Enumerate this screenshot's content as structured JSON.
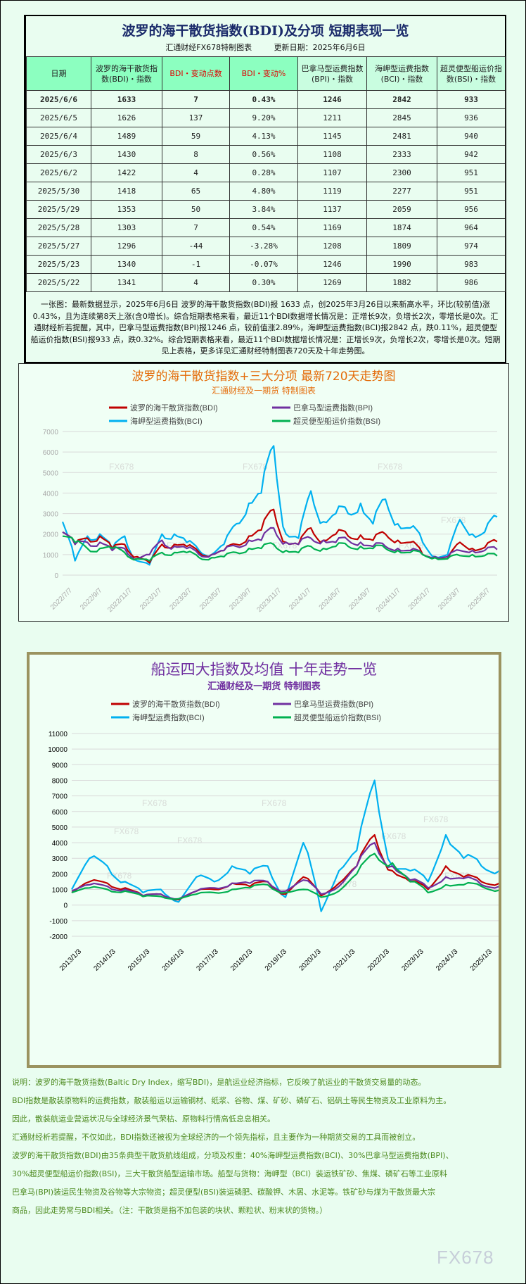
{
  "header": {
    "title": "波罗的海干散货指数(BDI)及分项 短期表现一览",
    "source": "汇通财经FX678特制图表",
    "update": "更新日期：2025年6月6日"
  },
  "table": {
    "columns": [
      "日期",
      "波罗的海干散货指数(BDI)・指数",
      "BDI・变动点数",
      "BDI・变动%",
      "巴拿马型运费指数(BPI)・指数",
      "海岬型运费指数(BCI)・指数",
      "超灵便型船运价指数(BSI)・指数"
    ],
    "rows": [
      [
        "2025/6/6",
        "1633",
        "7",
        "0.43%",
        "1246",
        "2842",
        "933"
      ],
      [
        "2025/6/5",
        "1626",
        "137",
        "9.20%",
        "1211",
        "2845",
        "936"
      ],
      [
        "2025/6/4",
        "1489",
        "59",
        "4.13%",
        "1145",
        "2481",
        "940"
      ],
      [
        "2025/6/3",
        "1430",
        "8",
        "0.56%",
        "1108",
        "2333",
        "942"
      ],
      [
        "2025/6/2",
        "1422",
        "4",
        "0.28%",
        "1107",
        "2300",
        "951"
      ],
      [
        "2025/5/30",
        "1418",
        "65",
        "4.80%",
        "1119",
        "2277",
        "951"
      ],
      [
        "2025/5/29",
        "1353",
        "50",
        "3.84%",
        "1137",
        "2059",
        "956"
      ],
      [
        "2025/5/28",
        "1303",
        "7",
        "0.54%",
        "1169",
        "1874",
        "964"
      ],
      [
        "2025/5/27",
        "1296",
        "-44",
        "-3.28%",
        "1208",
        "1809",
        "974"
      ],
      [
        "2025/5/23",
        "1340",
        "-1",
        "-0.07%",
        "1246",
        "1990",
        "983"
      ],
      [
        "2025/5/22",
        "1341",
        "4",
        "0.30%",
        "1269",
        "1882",
        "986"
      ]
    ],
    "summary": "一张图：最新数据显示，2025年6月6日 波罗的海干散货指数(BDI)报 1633 点，创2025年3月26日以来新高水平，环比(较前值)涨0.43%，且为连续第8天上涨(含0增长)。综合短期表格来看，最近11个BDI数据增长情况是：正增长9次，负增长2次，零增长是0次。汇通财经析若提醒，其中，巴拿马型运费指数(BPI)报1246 点，较前值涨2.89%，海岬型运费指数(BCI)报2842 点，跌0.11%，超灵便型船运价指数(BSI)报933 点，跌0.32%。综合短期表格来看，最近11个BDI数据增长情况是：正增长9次，负增长2次，零增长是0次。短期见上表格，更多详见汇通财经特制图表720天及十年走势图。"
  },
  "colors": {
    "BDI": "#c00000",
    "BPI": "#7030a0",
    "BCI": "#00b0f0",
    "BSI": "#00b050",
    "chart1_title": "#e46c0a",
    "chart2_title": "#7030a0"
  },
  "chart_data": [
    {
      "type": "line",
      "title": "波罗的海干散货指数+三大分项  最新720天走势图",
      "subtitle": "汇通财经及一期货  特制图表",
      "ylim": [
        0,
        7000
      ],
      "yticks": [
        "0",
        "1000",
        "2000",
        "3000",
        "4000",
        "5000",
        "6000",
        "7000"
      ],
      "xticks": [
        "2022/7/7",
        "2022/9/7",
        "2022/11/7",
        "2023/1/7",
        "2023/3/7",
        "2023/5/7",
        "2023/9/7",
        "2023/11/7",
        "2024/1/7",
        "2024/5/7",
        "2024/9/7",
        "2024/11/7",
        "2025/1/7",
        "2025/3/7",
        "2025/5/7"
      ],
      "grid": true,
      "legend": "top",
      "watermark": "FX678",
      "series": [
        {
          "name": "波罗的海干散货指数(BDI)",
          "key": "BDI",
          "values": [
            2100,
            1500,
            1800,
            1900,
            1300,
            1500,
            900,
            600,
            1500,
            1500,
            1400,
            1100,
            1000,
            1200,
            1500,
            1900,
            2200,
            3200,
            1600,
            1500,
            2300,
            1700,
            2000,
            1900,
            1950,
            1700,
            2000,
            1700,
            1600,
            1000,
            900,
            800,
            1600,
            1300,
            1350,
            1633
          ]
        },
        {
          "name": "巴拿马型运费指数(BPI)",
          "key": "BPI",
          "values": [
            2100,
            1500,
            1600,
            1600,
            1200,
            1300,
            800,
            1000,
            1700,
            1400,
            1300,
            1000,
            1000,
            1200,
            1400,
            1700,
            1700,
            2300,
            1600,
            1500,
            1800,
            1700,
            1600,
            1700,
            1600,
            1400,
            1400,
            1300,
            1200,
            1000,
            900,
            900,
            1200,
            1200,
            1200,
            1246
          ]
        },
        {
          "name": "海岬型运费指数(BCI)",
          "key": "BCI",
          "values": [
            2600,
            700,
            1900,
            2000,
            1300,
            1900,
            700,
            500,
            2000,
            2000,
            1600,
            1200,
            1000,
            1500,
            2500,
            3500,
            4000,
            6300,
            2000,
            1800,
            4100,
            2600,
            3000,
            3000,
            3500,
            2500,
            3700,
            2500,
            2300,
            1600,
            900,
            1000,
            2700,
            2000,
            2100,
            2842
          ]
        },
        {
          "name": "超灵便型船运价指数(BSI)",
          "key": "BSI",
          "values": [
            1900,
            1600,
            1300,
            1300,
            1300,
            1100,
            800,
            700,
            1100,
            1100,
            1100,
            850,
            850,
            900,
            1100,
            1300,
            1300,
            1500,
            1200,
            1100,
            1400,
            1300,
            1400,
            1400,
            1400,
            1300,
            1300,
            1200,
            1100,
            1000,
            850,
            800,
            950,
            1000,
            950,
            933
          ]
        }
      ]
    },
    {
      "type": "line",
      "title": "船运四大指数及均值 十年走势一览",
      "subtitle": "汇通财经及一期货 特制图表",
      "ylim": [
        -2000,
        11000
      ],
      "yticks": [
        "-2000",
        "-1000",
        "0",
        "1000",
        "2000",
        "3000",
        "4000",
        "5000",
        "6000",
        "7000",
        "8000",
        "9000",
        "10000",
        "11000"
      ],
      "xticks": [
        "2013/1/3",
        "2014/1/3",
        "2015/1/3",
        "2016/1/3",
        "2017/1/3",
        "2018/1/3",
        "2019/1/3",
        "2020/1/3",
        "2021/1/3",
        "2022/1/3",
        "2023/1/3",
        "2024/1/3",
        "2025/1/3"
      ],
      "grid": true,
      "legend": "top",
      "watermark": "FX678",
      "series": [
        {
          "name": "波罗的海干散货指数(BDI)",
          "key": "BDI",
          "values": [
            800,
            1500,
            1400,
            1100,
            600,
            700,
            350,
            900,
            1000,
            1400,
            1200,
            1500,
            700,
            1800,
            600,
            1400,
            2500,
            4500,
            2200,
            1500,
            1000,
            2500,
            1800,
            1500,
            1400
          ]
        },
        {
          "name": "巴拿马型运费指数(BPI)",
          "key": "BPI",
          "values": [
            900,
            1300,
            1200,
            1000,
            600,
            700,
            400,
            900,
            1100,
            1400,
            1400,
            1500,
            900,
            1600,
            700,
            1200,
            2500,
            4000,
            2500,
            1600,
            1100,
            1800,
            1700,
            1300,
            1200
          ]
        },
        {
          "name": "海岬型运费指数(BCI)",
          "key": "BCI",
          "values": [
            1000,
            3000,
            2500,
            1500,
            800,
            1000,
            200,
            1800,
            1500,
            2500,
            2000,
            2500,
            500,
            4000,
            -400,
            2200,
            3500,
            8000,
            2500,
            2200,
            1500,
            4500,
            3000,
            2500,
            2200
          ]
        },
        {
          "name": "超灵便型船运价指数(BSI)",
          "key": "BSI",
          "values": [
            800,
            1100,
            1000,
            900,
            550,
            550,
            400,
            700,
            800,
            1000,
            1100,
            1300,
            800,
            1000,
            500,
            900,
            2000,
            3300,
            2700,
            1500,
            800,
            1300,
            1300,
            1200,
            950
          ]
        }
      ]
    }
  ],
  "notes": [
    "说明：波罗的海干散货指数(Baltic Dry Index，缩写BDI)，是航运业经济指标，它反映了航运业的干散货交易量的动态。",
    "BDI指数是散装原物料的运费指数，散装船运以运输钢材、纸浆、谷物、煤、矿砂、磷矿石、铝矾土等民生物资及工业原料为主。",
    "因此，散装航运业营运状况与全球经济景气荣枯、原物料行情高低息息相关。",
    "汇通财经析若提醒，不仅如此，BDI指数还被视为全球经济的一个领先指标，且主要作为一种期货交易的工具而被创立。",
    "波罗的海干散货指数(BDI)由35条典型干散货航线组成，分项及权重：40%海岬型运费指数(BCI)、30%巴拿马型运费指数(BPI)、",
    "30%超灵便型船运价指数(BSI)，三大干散货船型运输市场。船型与货物：海岬型（BCI）装运铁矿砂、焦煤、磷矿石等工业原料",
    "巴拿马(BPI)装运民生物资及谷物等大宗物资；超灵便型(BSI)装运磷肥、碳酸钾、木屑、水泥等。铁矿砂与煤为干散货最大宗",
    "商品，因此走势常与BDI相关。（注：干散货是指不加包装的块状、颗粒状、粉末状的货物。）"
  ],
  "watermark": "FX678"
}
